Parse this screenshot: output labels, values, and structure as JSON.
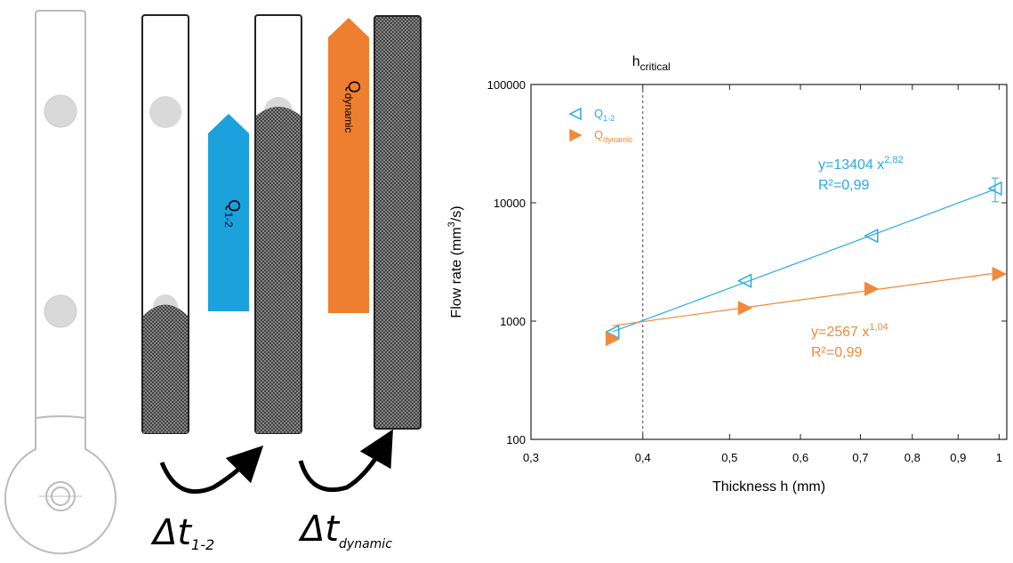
{
  "diagram": {
    "q12": {
      "main": "Q",
      "sub": "1-2"
    },
    "qdyn": {
      "main": "Q",
      "sub": "dynamic"
    },
    "dt12": {
      "main": "Δt",
      "sub": "1-2"
    },
    "dtdyn": {
      "main": "Δt",
      "sub": "dynamic"
    }
  },
  "chart_data": {
    "type": "scatter",
    "xscale": "log",
    "yscale": "log",
    "xlabel": "Thickness h (mm)",
    "ylabel": {
      "text": "Flow rate (mm",
      "sup": "3",
      "tail": "/s)"
    },
    "xlim": [
      0.3,
      1.02
    ],
    "ylim": [
      100,
      100000
    ],
    "xticks": [
      {
        "value": 0.3,
        "label": "0,3"
      },
      {
        "value": 0.4,
        "label": "0,4"
      },
      {
        "value": 0.5,
        "label": "0,5"
      },
      {
        "value": 0.6,
        "label": "0,6"
      },
      {
        "value": 0.7,
        "label": "0,7"
      },
      {
        "value": 0.8,
        "label": "0,8"
      },
      {
        "value": 0.9,
        "label": "0,9"
      },
      1
    ],
    "yticks": [
      100,
      1000,
      10000,
      100000
    ],
    "vline": {
      "x": 0.4,
      "label": "h",
      "sub": "critical"
    },
    "series": [
      {
        "name": "Q",
        "name_sub": "1-2",
        "color": "#29abe2",
        "marker": "open-left-triangle",
        "x": [
          0.37,
          0.52,
          0.72,
          0.99
        ],
        "values": [
          810,
          2190,
          5260,
          13200
        ],
        "errors": [
          null,
          null,
          null,
          3000
        ],
        "fit": {
          "a": 13404,
          "b": 2.82,
          "label": "y=13404 x",
          "exponent": "2,82",
          "r2": "R²=0,99"
        }
      },
      {
        "name": "Q",
        "name_sub": "dynamic",
        "color": "#f08a3c",
        "marker": "filled-right-triangle",
        "x": [
          0.37,
          0.52,
          0.72,
          1.0
        ],
        "values": [
          707,
          1290,
          1870,
          2500
        ],
        "fit": {
          "a": 2567,
          "b": 1.04,
          "label": "y=2567 x",
          "exponent": "1,04",
          "r2": "R²=0,99"
        }
      }
    ]
  }
}
